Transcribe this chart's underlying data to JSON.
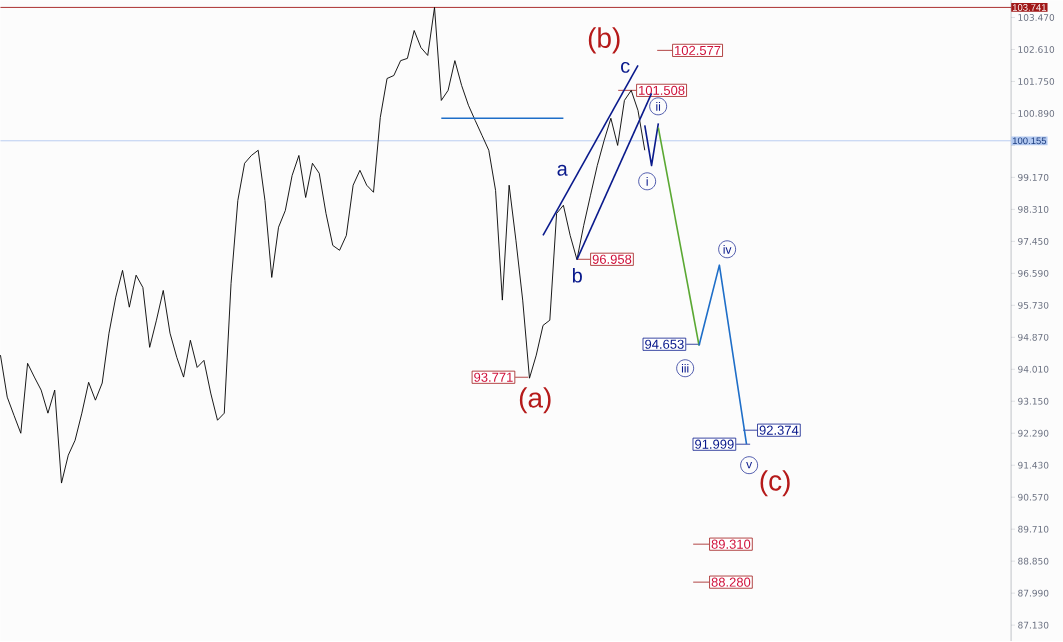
{
  "chart_data": {
    "type": "line",
    "categories": [
      null,
      null,
      null,
      null,
      null,
      null,
      null,
      null,
      null,
      null,
      null,
      null,
      null,
      null,
      null,
      null,
      null,
      null,
      null,
      null,
      null,
      null,
      null,
      null,
      null,
      null,
      null,
      null,
      null,
      null,
      null,
      null,
      null,
      null,
      null,
      null,
      null,
      null,
      null,
      null,
      null,
      null,
      null,
      null,
      null,
      null,
      null,
      null,
      null,
      null,
      null,
      null,
      null,
      null,
      null,
      null,
      null,
      null,
      null,
      null,
      null,
      null,
      null,
      null,
      null,
      null,
      null,
      null,
      null,
      null,
      null,
      null,
      null,
      null,
      null,
      null,
      null,
      null,
      null,
      null,
      null,
      null,
      null,
      null,
      null,
      null,
      null,
      null,
      null,
      null,
      null,
      null,
      null,
      null,
      null,
      null,
      null,
      null,
      null,
      null,
      null,
      null,
      null,
      null,
      null,
      null,
      null,
      null,
      null,
      null,
      null,
      null,
      null,
      null,
      null,
      null,
      null,
      null,
      null,
      null,
      null,
      null,
      null,
      null,
      null,
      null,
      null,
      null,
      null,
      null,
      null,
      null,
      null,
      null,
      null,
      null,
      null,
      null,
      null,
      null,
      null,
      null,
      null,
      null,
      null,
      null,
      null,
      null,
      null,
      null
    ],
    "series": [
      {
        "color": "#000000",
        "values": [
          94.39,
          93.26,
          92.77,
          92.29,
          94.17,
          93.8,
          93.45,
          92.83,
          93.45,
          90.95,
          91.7,
          92.1,
          92.83,
          93.66,
          93.18,
          93.64,
          94.98,
          95.95,
          96.67,
          95.68,
          96.54,
          96.21,
          94.6,
          95.33,
          96.13,
          94.98,
          94.33,
          93.8,
          94.79,
          94.06,
          94.25,
          93.37,
          92.64,
          92.83,
          96.32,
          98.55,
          99.55,
          99.76,
          99.9,
          98.55,
          96.48,
          97.83,
          98.28,
          99.22,
          99.76,
          98.63,
          99.55,
          99.28,
          98.2,
          97.34,
          97.21,
          97.61,
          98.96,
          99.36,
          98.96,
          98.77,
          100.78,
          101.83,
          101.91,
          102.31,
          102.37,
          103.12,
          102.66,
          102.45,
          103.74,
          101.24,
          101.51,
          102.31,
          101.64,
          101.11,
          100.7,
          100.3,
          99.9,
          98.82,
          95.87,
          98.96,
          97.48,
          95.87,
          93.77,
          94.39,
          95.19,
          95.33,
          98.2,
          98.42,
          97.61,
          96.96,
          97.88,
          98.69,
          99.49,
          100.16,
          100.76,
          100.03,
          101.24,
          101.51,
          100.97,
          99.9,
          null,
          null,
          null,
          null,
          null,
          null,
          null,
          null,
          null,
          null,
          null,
          null,
          null,
          null,
          null,
          null,
          null,
          null,
          null,
          null,
          null,
          null,
          null,
          null,
          null,
          null,
          null,
          null,
          null,
          null,
          null,
          null,
          null,
          null,
          null,
          null,
          null,
          null,
          null,
          null,
          null,
          null,
          null,
          null,
          null,
          null,
          null,
          null,
          null,
          null,
          null,
          null,
          null,
          null
        ]
      },
      {
        "color": "#1e6ec8",
        "values": [
          null,
          null,
          null,
          null,
          null,
          null,
          null,
          null,
          null,
          null,
          null,
          null,
          null,
          null,
          null,
          null,
          null,
          null,
          null,
          null,
          null,
          null,
          null,
          null,
          null,
          null,
          null,
          null,
          null,
          null,
          null,
          null,
          null,
          null,
          null,
          null,
          null,
          null,
          null,
          null,
          null,
          null,
          null,
          null,
          null,
          null,
          null,
          null,
          null,
          null,
          null,
          null,
          null,
          null,
          null,
          null,
          null,
          null,
          null,
          null,
          null,
          null,
          null,
          null,
          null,
          100.76,
          null,
          null,
          null,
          null,
          null,
          null,
          null,
          null,
          null,
          null,
          null,
          null,
          null,
          null,
          null,
          null,
          null,
          100.76,
          null,
          null,
          null,
          null,
          null,
          null,
          null,
          null,
          null,
          null,
          null,
          null,
          null,
          null,
          null,
          null,
          null,
          null,
          null,
          null,
          null,
          null,
          null,
          null,
          null,
          null,
          null,
          null,
          null,
          null,
          null,
          null,
          null,
          null,
          null,
          null,
          null,
          null,
          null,
          null,
          null,
          null,
          null,
          null,
          null,
          null,
          null,
          null,
          null,
          null,
          null,
          null,
          null,
          null,
          null,
          null,
          null,
          null,
          null,
          null,
          null,
          null,
          null,
          null,
          null,
          null
        ]
      },
      {
        "color": "#0a1a8c",
        "values": [
          null,
          null,
          null,
          null,
          null,
          null,
          null,
          null,
          null,
          null,
          null,
          null,
          null,
          null,
          null,
          null,
          null,
          null,
          null,
          null,
          null,
          null,
          null,
          null,
          null,
          null,
          null,
          null,
          null,
          null,
          null,
          null,
          null,
          null,
          null,
          null,
          null,
          null,
          null,
          null,
          null,
          null,
          null,
          null,
          null,
          null,
          null,
          null,
          null,
          null,
          null,
          null,
          null,
          null,
          null,
          null,
          null,
          null,
          null,
          null,
          null,
          null,
          null,
          null,
          null,
          null,
          null,
          null,
          null,
          null,
          null,
          null,
          null,
          null,
          null,
          null,
          null,
          null,
          null,
          null,
          97.61,
          null,
          null,
          null,
          null,
          null,
          null,
          null,
          null,
          null,
          null,
          null,
          null,
          null,
          102.18,
          null,
          null,
          null,
          null,
          null,
          null,
          null,
          null,
          null,
          null,
          null,
          null,
          null,
          null,
          null,
          null,
          null,
          null,
          null,
          null,
          null,
          null,
          null,
          null,
          null,
          null,
          null,
          null,
          null,
          null,
          null,
          null,
          null,
          null,
          null,
          null,
          null,
          null,
          null,
          null,
          null,
          null,
          null,
          null,
          null,
          null,
          null,
          null,
          null,
          null,
          null,
          null,
          null,
          null,
          null
        ]
      },
      {
        "color": "#0a1a8c",
        "values": [
          null,
          null,
          null,
          null,
          null,
          null,
          null,
          null,
          null,
          null,
          null,
          null,
          null,
          null,
          null,
          null,
          null,
          null,
          null,
          null,
          null,
          null,
          null,
          null,
          null,
          null,
          null,
          null,
          null,
          null,
          null,
          null,
          null,
          null,
          null,
          null,
          null,
          null,
          null,
          null,
          null,
          null,
          null,
          null,
          null,
          null,
          null,
          null,
          null,
          null,
          null,
          null,
          null,
          null,
          null,
          null,
          null,
          null,
          null,
          null,
          null,
          null,
          null,
          null,
          null,
          null,
          null,
          null,
          null,
          null,
          null,
          null,
          null,
          null,
          null,
          null,
          null,
          null,
          null,
          null,
          null,
          null,
          null,
          null,
          null,
          96.96,
          null,
          null,
          null,
          null,
          null,
          null,
          null,
          null,
          null,
          null,
          101.43,
          null,
          null,
          null,
          null,
          null,
          null,
          null,
          null,
          null,
          null,
          null,
          null,
          null,
          null,
          null,
          null,
          null,
          null,
          null,
          null,
          null,
          null,
          null,
          null,
          null,
          null,
          null,
          null,
          null,
          null,
          null,
          null,
          null,
          null,
          null,
          null,
          null,
          null,
          null,
          null,
          null,
          null,
          null,
          null,
          null,
          null,
          null,
          null,
          null,
          null,
          null,
          null,
          null
        ]
      },
      {
        "color": "#0a1a8c",
        "values": [
          null,
          null,
          null,
          null,
          null,
          null,
          null,
          null,
          null,
          null,
          null,
          null,
          null,
          null,
          null,
          null,
          null,
          null,
          null,
          null,
          null,
          null,
          null,
          null,
          null,
          null,
          null,
          null,
          null,
          null,
          null,
          null,
          null,
          null,
          null,
          null,
          null,
          null,
          null,
          null,
          null,
          null,
          null,
          null,
          null,
          null,
          null,
          null,
          null,
          null,
          null,
          null,
          null,
          null,
          null,
          null,
          null,
          null,
          null,
          null,
          null,
          null,
          null,
          null,
          null,
          null,
          null,
          null,
          null,
          null,
          null,
          null,
          null,
          null,
          null,
          null,
          null,
          null,
          null,
          null,
          null,
          null,
          null,
          null,
          null,
          null,
          null,
          null,
          null,
          null,
          null,
          null,
          null,
          null,
          null,
          100.57,
          99.49,
          100.62,
          null,
          null,
          null,
          null,
          null,
          null,
          null,
          null,
          null,
          null,
          null,
          null,
          null,
          null,
          null,
          null,
          null,
          null,
          null,
          null,
          null,
          null,
          null,
          null,
          null,
          null,
          null,
          null,
          null,
          null,
          null,
          null,
          null,
          null,
          null,
          null,
          null,
          null,
          null,
          null,
          null,
          null,
          null,
          null,
          null,
          null,
          null,
          null,
          null,
          null,
          null,
          null
        ]
      },
      {
        "color": "#5aa832",
        "values": [
          null,
          null,
          null,
          null,
          null,
          null,
          null,
          null,
          null,
          null,
          null,
          null,
          null,
          null,
          null,
          null,
          null,
          null,
          null,
          null,
          null,
          null,
          null,
          null,
          null,
          null,
          null,
          null,
          null,
          null,
          null,
          null,
          null,
          null,
          null,
          null,
          null,
          null,
          null,
          null,
          null,
          null,
          null,
          null,
          null,
          null,
          null,
          null,
          null,
          null,
          null,
          null,
          null,
          null,
          null,
          null,
          null,
          null,
          null,
          null,
          null,
          null,
          null,
          null,
          null,
          null,
          null,
          null,
          null,
          null,
          null,
          null,
          null,
          null,
          null,
          null,
          null,
          null,
          null,
          null,
          null,
          null,
          null,
          null,
          null,
          null,
          null,
          null,
          null,
          null,
          null,
          null,
          null,
          null,
          null,
          null,
          null,
          100.51,
          null,
          null,
          null,
          null,
          null,
          94.65,
          null,
          null,
          null,
          null,
          null,
          null,
          null,
          null,
          null,
          null,
          null,
          null,
          null,
          null,
          null,
          null,
          null,
          null,
          null,
          null,
          null,
          null,
          null,
          null,
          null,
          null,
          null,
          null,
          null,
          null,
          null,
          null,
          null,
          null,
          null,
          null,
          null,
          null,
          null,
          null,
          null,
          null,
          null,
          null,
          null,
          null
        ]
      },
      {
        "color": "#1e6ec8",
        "values": [
          null,
          null,
          null,
          null,
          null,
          null,
          null,
          null,
          null,
          null,
          null,
          null,
          null,
          null,
          null,
          null,
          null,
          null,
          null,
          null,
          null,
          null,
          null,
          null,
          null,
          null,
          null,
          null,
          null,
          null,
          null,
          null,
          null,
          null,
          null,
          null,
          null,
          null,
          null,
          null,
          null,
          null,
          null,
          null,
          null,
          null,
          null,
          null,
          null,
          null,
          null,
          null,
          null,
          null,
          null,
          null,
          null,
          null,
          null,
          null,
          null,
          null,
          null,
          null,
          null,
          null,
          null,
          null,
          null,
          null,
          null,
          null,
          null,
          null,
          null,
          null,
          null,
          null,
          null,
          null,
          null,
          null,
          null,
          null,
          null,
          null,
          null,
          null,
          null,
          null,
          null,
          null,
          null,
          null,
          null,
          null,
          null,
          null,
          null,
          null,
          null,
          null,
          null,
          94.65,
          null,
          null,
          96.81,
          null,
          null,
          null,
          92.0,
          null,
          null,
          null,
          null,
          null,
          null,
          null,
          null,
          null,
          null,
          null,
          null,
          null,
          null,
          null,
          null,
          null,
          null,
          null,
          null,
          null,
          null,
          null,
          null,
          null,
          null,
          null,
          null,
          null,
          null,
          null,
          null,
          null,
          null,
          null,
          null,
          null,
          null,
          null
        ]
      }
    ],
    "ylim": [
      86.7,
      103.93
    ],
    "yticks": [
      {
        "value": 87.13,
        "label": "87.130"
      },
      {
        "value": 87.99,
        "label": "87.990"
      },
      {
        "value": 88.85,
        "label": "88.850"
      },
      {
        "value": 89.71,
        "label": "89.710"
      },
      {
        "value": 90.57,
        "label": "90.570"
      },
      {
        "value": 91.43,
        "label": "91.430"
      },
      {
        "value": 92.29,
        "label": "92.290"
      },
      {
        "value": 93.15,
        "label": "93.150"
      },
      {
        "value": 94.01,
        "label": "94.010"
      },
      {
        "value": 94.87,
        "label": "94.870"
      },
      {
        "value": 95.73,
        "label": "95.730"
      },
      {
        "value": 96.59,
        "label": "96.590"
      },
      {
        "value": 97.45,
        "label": "97.450"
      },
      {
        "value": 98.31,
        "label": "98.310"
      },
      {
        "value": 99.17,
        "label": "99.170"
      },
      {
        "value": 100.03,
        "label": null
      },
      {
        "value": 100.89,
        "label": "100.890"
      },
      {
        "value": 101.75,
        "label": "101.750"
      },
      {
        "value": 102.61,
        "label": "102.610"
      },
      {
        "value": 103.47,
        "label": "103.470"
      }
    ],
    "tick_labels": "y",
    "ref_lines": [
      {
        "axis": "y",
        "value": 103.741,
        "label": "103.741",
        "color": "#a01818"
      },
      {
        "axis": "y",
        "value": 100.155,
        "label": "100.155",
        "color": "#b3c9f0"
      }
    ],
    "annotations": [
      "(b)",
      "(a)",
      "(c)",
      "a",
      "b",
      "c",
      "i",
      "ii",
      "iii",
      "iv",
      "v",
      "102.577",
      "101.508",
      "96.958",
      "93.771",
      "94.653",
      "92.374",
      "91.999",
      "89.310",
      "88.280"
    ]
  }
}
